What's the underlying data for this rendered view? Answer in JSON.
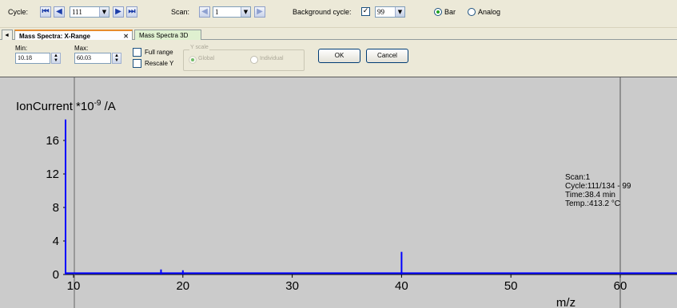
{
  "toolbar": {
    "cycle_label": "Cycle:",
    "cycle_value": "111",
    "scan_label": "Scan:",
    "scan_value": "1",
    "bg_cycle_label": "Background cycle:",
    "bg_cycle_checked": "✓",
    "bg_cycle_value": "99",
    "bar_label": "Bar",
    "analog_label": "Analog"
  },
  "tabs": {
    "arrow": "◄",
    "active_label": "Mass Spectra: X-Range",
    "close": "✕",
    "other_label": "Mass Spectra 3D"
  },
  "range_panel": {
    "min_label": "Min:",
    "min_value": "10.18",
    "max_label": "Max:",
    "max_value": "60.03",
    "full_range_label": "Full range",
    "rescale_y_label": "Rescale Y",
    "yscale_label": "Y scale",
    "global_label": "Global",
    "individual_label": "Individual",
    "ok_label": "OK",
    "cancel_label": "Cancel"
  },
  "chart_data": {
    "type": "bar",
    "ylabel_main": "IonCurrent *10",
    "ylabel_exp": "-9",
    "ylabel_unit": " /A",
    "xlabel": "m/z",
    "xlim": [
      10,
      65
    ],
    "ylim": [
      0,
      18
    ],
    "xticks": [
      10,
      20,
      30,
      40,
      50,
      60
    ],
    "yticks": [
      0,
      4,
      8,
      12,
      16
    ],
    "bars": [
      {
        "x": 10,
        "y": 18.5
      },
      {
        "x": 18,
        "y": 0.6
      },
      {
        "x": 20,
        "y": 0.5
      },
      {
        "x": 40,
        "y": 2.7
      }
    ],
    "baseline": 0.15,
    "cursor_x": 60,
    "color": "#0000ff",
    "info": {
      "scan": "Scan:1",
      "cycle": "Cycle:111/134 - 99",
      "time": "Time:38.4 min",
      "temp": "Temp.:413.2 °C"
    }
  }
}
